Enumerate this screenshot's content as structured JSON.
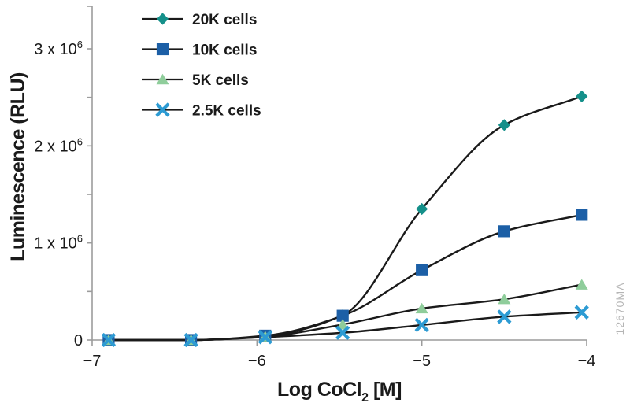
{
  "chart_data": {
    "type": "line",
    "title": "",
    "xlabel": "Log CoCl2 [M]",
    "xlabel_parts": [
      "Log CoCl",
      "2",
      " [M]"
    ],
    "ylabel": "Luminescence (RLU)",
    "x": [
      -6.9,
      -6.4,
      -5.95,
      -5.48,
      -5.0,
      -4.5,
      -4.03
    ],
    "series": [
      {
        "name": "20K cells",
        "marker": "diamond",
        "color": "#15908A",
        "values": [
          0,
          0,
          40000,
          255000,
          1350000,
          2215000,
          2510000
        ]
      },
      {
        "name": "10K cells",
        "marker": "square",
        "color": "#1C5FA6",
        "values": [
          0,
          0,
          45000,
          250000,
          720000,
          1120000,
          1290000
        ]
      },
      {
        "name": "5K cells",
        "marker": "triangle",
        "color": "#8FCD9B",
        "values": [
          0,
          0,
          35000,
          160000,
          325000,
          420000,
          570000
        ]
      },
      {
        "name": "2.5K cells",
        "marker": "x",
        "color": "#2D9BD3",
        "values": [
          0,
          0,
          30000,
          75000,
          155000,
          240000,
          285000
        ]
      }
    ],
    "line_color": "#1A1A1A",
    "axis_color": "#9C9C9C",
    "text_color": "#1A1A1A",
    "x_axis": {
      "min": -7,
      "max": -4,
      "ticks": [
        -7,
        -6,
        -5,
        -4
      ],
      "tick_labels": [
        "−7",
        "−6",
        "−5",
        "−4"
      ]
    },
    "y_axis": {
      "min": 0,
      "max": 3440000,
      "major_ticks": [
        0,
        1000000,
        2000000,
        3000000
      ],
      "minor_step": 500000,
      "tick_labels": [
        {
          "value": 0,
          "text": "0"
        },
        {
          "value": 1000000,
          "mantissa": "1 x 10",
          "exponent": "6"
        },
        {
          "value": 2000000,
          "mantissa": "2 x 10",
          "exponent": "6"
        },
        {
          "value": 3000000,
          "mantissa": "3 x 10",
          "exponent": "6"
        }
      ]
    },
    "legend": {
      "position": "top-left",
      "items": [
        "20K cells",
        "10K cells",
        "5K cells",
        "2.5K cells"
      ]
    },
    "watermark": "12670MA",
    "grid": false
  }
}
